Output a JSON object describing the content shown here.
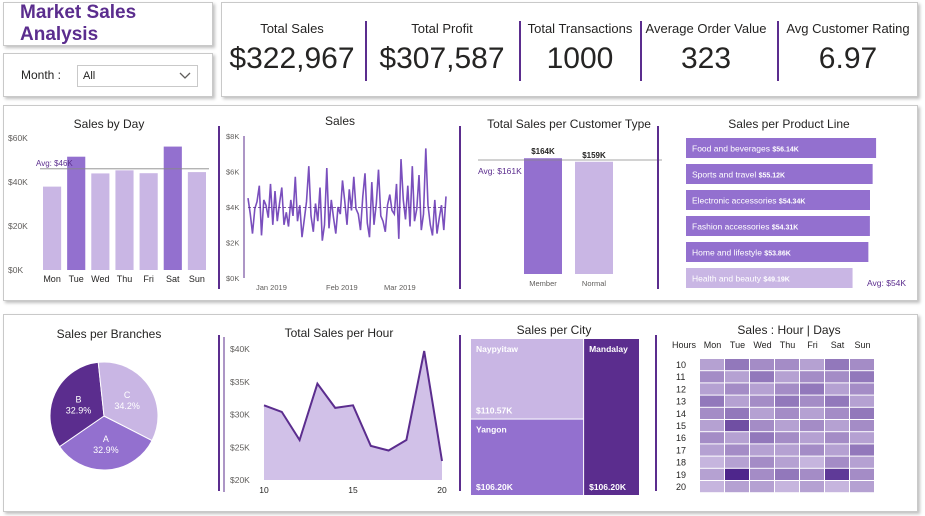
{
  "header": {
    "title": "Market Sales Analysis"
  },
  "filter": {
    "label": "Month :",
    "value": "All"
  },
  "kpis": [
    {
      "label": "Total Sales",
      "value": "$322,967"
    },
    {
      "label": "Total Profit",
      "value": "$307,587"
    },
    {
      "label": "Total Transactions",
      "value": "1000"
    },
    {
      "label": "Average Order Value",
      "value": "323"
    },
    {
      "label": "Avg Customer Rating",
      "value": "6.97"
    }
  ],
  "colors": {
    "dark": "#5b2d8e",
    "mid": "#9370cf",
    "light": "#c9b6e4",
    "accent": "#7a4fbd"
  },
  "chart_data": [
    {
      "id": "sales_by_day",
      "type": "bar",
      "title": "Sales by Day",
      "categories": [
        "Mon",
        "Tue",
        "Wed",
        "Thu",
        "Fri",
        "Sat",
        "Sun"
      ],
      "values": [
        37.9,
        51.5,
        43.9,
        45.3,
        44.0,
        56.1,
        44.5
      ],
      "highlight": [
        false,
        true,
        false,
        false,
        false,
        true,
        false
      ],
      "ylim": [
        0,
        60
      ],
      "yticks": [
        "$0K",
        "$20K",
        "$40K",
        "$60K"
      ],
      "avg_label": "Avg: $46K",
      "avg": 46
    },
    {
      "id": "sales_line",
      "type": "line",
      "title": "Sales",
      "xticks": [
        "Jan 2019",
        "Feb 2019",
        "Mar 2019"
      ],
      "yticks": [
        "$0K",
        "$2K",
        "$4K",
        "$6K",
        "$8K"
      ],
      "ylim": [
        0,
        8
      ],
      "values": [
        4.5,
        3.6,
        2.5,
        3.9,
        4.3,
        5.2,
        2.4,
        4.4,
        4.1,
        3.4,
        5.3,
        3.0,
        4.9,
        3.2,
        4.2,
        5.1,
        3.0,
        3.7,
        2.9,
        4.4,
        3.5,
        5.7,
        3.2,
        4.1,
        2.3,
        3.3,
        4.3,
        6.3,
        3.5,
        2.6,
        4.2,
        3.2,
        5.1,
        2.1,
        3.0,
        6.2,
        2.8,
        4.4,
        3.4,
        2.5,
        4.0,
        3.6,
        5.5,
        4.3,
        3.0,
        5.0,
        3.8,
        5.7,
        3.9,
        3.6,
        2.7,
        4.6,
        5.9,
        3.1,
        2.3,
        5.4,
        3.0,
        4.2,
        6.1,
        3.5,
        3.2,
        2.6,
        4.1,
        4.7,
        3.8,
        3.6,
        5.3,
        2.2,
        6.7,
        4.4,
        3.3,
        5.2,
        2.9,
        6.3,
        3.2,
        3.9,
        5.8,
        2.7,
        3.6,
        7.3,
        4.1,
        3.0,
        2.4,
        4.4,
        2.5,
        3.4,
        4.1,
        2.7,
        4.6
      ]
    },
    {
      "id": "customer_type",
      "type": "bar",
      "title": "Total Sales per Customer Type",
      "categories": [
        "Member",
        "Normal"
      ],
      "values": [
        164,
        159
      ],
      "labels": [
        "$164K",
        "$159K"
      ],
      "ylim": [
        0,
        170
      ],
      "avg_label": "Avg: $161K",
      "avg": 161.5
    },
    {
      "id": "product_line",
      "type": "bar",
      "title": "Sales per Product Line",
      "categories": [
        "Food and beverages",
        "Sports and travel",
        "Electronic accessories",
        "Fashion accessories",
        "Home and lifestyle",
        "Health and beauty"
      ],
      "values": [
        56.14,
        55.12,
        54.34,
        54.31,
        53.86,
        49.19
      ],
      "labels": [
        "$56.14K",
        "$55.12K",
        "$54.34K",
        "$54.31K",
        "$53.86K",
        "$49.19K"
      ],
      "avg_label": "Avg: $54K",
      "xlim": [
        0,
        57
      ]
    },
    {
      "id": "branches",
      "type": "pie",
      "title": "Sales per Branches",
      "categories": [
        "A",
        "B",
        "C"
      ],
      "values": [
        32.9,
        32.9,
        34.2
      ],
      "labels": [
        "32.9%",
        "32.9%",
        "34.2%"
      ]
    },
    {
      "id": "sales_per_hour",
      "type": "area",
      "title": "Total Sales per Hour",
      "x": [
        10,
        11,
        12,
        13,
        14,
        15,
        16,
        17,
        18,
        19,
        20
      ],
      "values": [
        31.4,
        30.4,
        26.1,
        34.7,
        31.0,
        31.4,
        25.2,
        24.5,
        26.1,
        39.7,
        22.9
      ],
      "xticks": [
        "10",
        "15",
        "20"
      ],
      "yticks": [
        "$20K",
        "$25K",
        "$30K",
        "$35K",
        "$40K"
      ],
      "ylim": [
        20,
        40
      ]
    },
    {
      "id": "sales_per_city",
      "type": "treemap",
      "title": "Sales per City",
      "categories": [
        "Naypyitaw",
        "Yangon",
        "Mandalay"
      ],
      "values": [
        110.57,
        106.2,
        106.2
      ],
      "labels": [
        "$110.57K",
        "$106.20K",
        "$106.20K"
      ]
    },
    {
      "id": "hour_day",
      "type": "heatmap",
      "title": "Sales : Hour | Days",
      "corner": "Hours",
      "columns": [
        "Mon",
        "Tue",
        "Wed",
        "Thu",
        "Fri",
        "Sat",
        "Sun"
      ],
      "rows": [
        "10",
        "11",
        "12",
        "13",
        "14",
        "15",
        "16",
        "17",
        "18",
        "19",
        "20"
      ],
      "matrix": [
        [
          3,
          5,
          4,
          4,
          3,
          5,
          4
        ],
        [
          4,
          3,
          5,
          3,
          4,
          4,
          5
        ],
        [
          3,
          4,
          3,
          4,
          5,
          3,
          4
        ],
        [
          5,
          3,
          4,
          5,
          4,
          5,
          3
        ],
        [
          4,
          5,
          3,
          4,
          3,
          4,
          5
        ],
        [
          3,
          7,
          4,
          3,
          4,
          3,
          4
        ],
        [
          4,
          3,
          5,
          4,
          3,
          4,
          3
        ],
        [
          3,
          4,
          3,
          3,
          4,
          3,
          5
        ],
        [
          2,
          3,
          4,
          3,
          2,
          4,
          3
        ],
        [
          3,
          9,
          4,
          5,
          4,
          8,
          4
        ],
        [
          2,
          3,
          3,
          2,
          3,
          2,
          3
        ]
      ]
    }
  ]
}
